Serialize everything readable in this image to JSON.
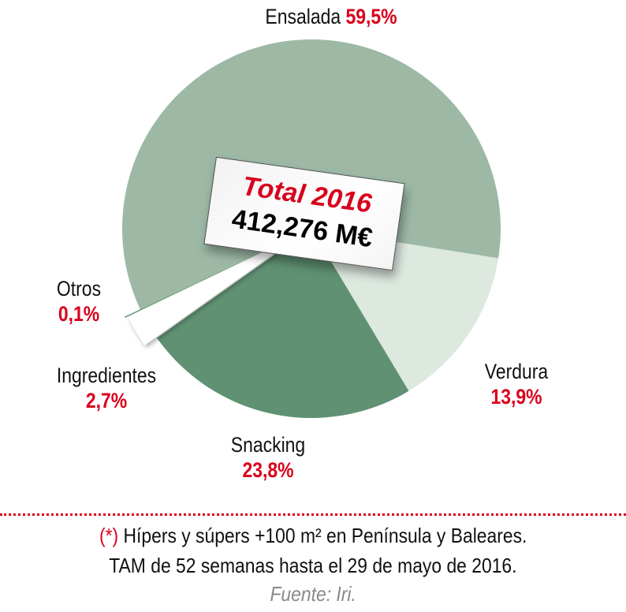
{
  "chart_data": {
    "type": "pie",
    "slices": [
      {
        "label": "Ensalada",
        "value": 59.5,
        "display": "59,5%",
        "color": "#9db9a6"
      },
      {
        "label": "Verdura",
        "value": 13.9,
        "display": "13,9%",
        "color": "#dde8df"
      },
      {
        "label": "Snacking",
        "value": 23.8,
        "display": "23,8%",
        "color": "#5f9172"
      },
      {
        "label": "Ingredientes",
        "value": 2.7,
        "display": "2,7%",
        "color": "#ffffff"
      },
      {
        "label": "Otros",
        "value": 0.1,
        "display": "0,1%",
        "color": "#5f9172"
      }
    ],
    "center_label": {
      "title": "Total 2016",
      "value": "412,276 M€"
    }
  },
  "footnote": {
    "marker": "(*)",
    "line1": "Hípers y súpers +100 m² en Península y Baleares.",
    "line2": "TAM de 52 semanas hasta el 29 de mayo de 2016.",
    "source": "Fuente: Iri."
  },
  "colors": {
    "accent": "#d9001b"
  }
}
